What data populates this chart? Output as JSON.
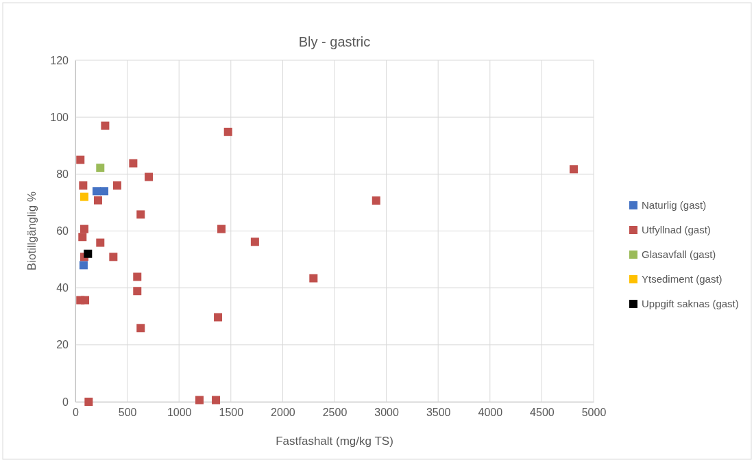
{
  "chart_data": {
    "type": "scatter",
    "title": "Bly - gastric",
    "xlabel": "Fastfashalt (mg/kg TS)",
    "ylabel": "Biotillgänglig %",
    "xlim": [
      0,
      5000
    ],
    "xticks": [
      0,
      500,
      1000,
      1500,
      2000,
      2500,
      3000,
      3500,
      4000,
      4500,
      5000
    ],
    "ylim": [
      0,
      120
    ],
    "yticks": [
      0,
      20,
      40,
      60,
      80,
      100,
      120
    ],
    "grid": true,
    "legend": "right",
    "marker": "square",
    "series": [
      {
        "name": "Naturlig (gast)",
        "color": "#4472c4",
        "x": [
          205,
          278,
          79
        ],
        "values": [
          74,
          74,
          48
        ]
      },
      {
        "name": "Utfyllnad (gast)",
        "color": "#c0504d",
        "x": [
          287,
          48,
          558,
          708,
          75,
          403,
          218,
          630,
          86,
          1409,
          68,
          240,
          86,
          366,
          597,
          597,
          48,
          93,
          1376,
          630,
          128,
          1197,
          1356,
          2902,
          2297,
          1732,
          1473,
          4808
        ],
        "values": [
          97,
          85,
          83.8,
          79,
          76,
          76,
          70.8,
          65.8,
          60.7,
          60.7,
          57.9,
          55.9,
          50.9,
          50.9,
          43.9,
          38.9,
          35.7,
          35.7,
          29.7,
          25.9,
          0,
          0.6,
          0.6,
          70.7,
          43.4,
          56.2,
          94.8,
          81.7
        ]
      },
      {
        "name": "Glasavfall (gast)",
        "color": "#9bbb59",
        "x": [
          240
        ],
        "values": [
          82.2
        ]
      },
      {
        "name": "Ytsediment (gast)",
        "color": "#ffc000",
        "x": [
          86
        ],
        "values": [
          72
        ]
      },
      {
        "name": "Uppgift saknas (gast)",
        "color": "#000000",
        "x": [
          121
        ],
        "values": [
          52
        ]
      }
    ]
  }
}
